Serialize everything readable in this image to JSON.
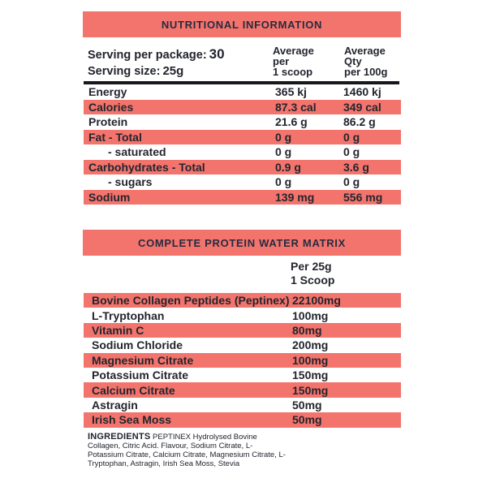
{
  "colors": {
    "accent": "#f3746c",
    "header_text": "#262b40",
    "row_text": "#23252e",
    "divider": "#17171c",
    "background": "#ffffff"
  },
  "nutrition": {
    "title": "NUTRITIONAL INFORMATION",
    "serving_package_label": "Serving per package:",
    "serving_package_value": "30",
    "serving_size_label": "Serving size:",
    "serving_size_value": "25g",
    "col1": {
      "l1": "Average",
      "l2": "per",
      "l3": "1 scoop"
    },
    "col2": {
      "l1": "Average",
      "l2": "Qty",
      "l3": "per 100g"
    },
    "rows": [
      {
        "label": "Energy",
        "scoop": "365 kj",
        "per100": "1460 kj"
      },
      {
        "label": "Calories",
        "scoop": "87.3 cal",
        "per100": "349 cal"
      },
      {
        "label": "Protein",
        "scoop": "21.6 g",
        "per100": "86.2 g"
      },
      {
        "label": "Fat - Total",
        "scoop": "0 g",
        "per100": "0 g"
      },
      {
        "label": "- saturated",
        "scoop": "0 g",
        "per100": "0 g"
      },
      {
        "label": "Carbohydrates - Total",
        "scoop": "0.9 g",
        "per100": "3.6 g"
      },
      {
        "label": "- sugars",
        "scoop": "0 g",
        "per100": "0 g"
      },
      {
        "label": "Sodium",
        "scoop": "139 mg",
        "per100": "556 mg"
      }
    ]
  },
  "matrix": {
    "title": "COMPLETE PROTEIN WATER MATRIX",
    "col_header_line1": "Per 25g",
    "col_header_line2": "1 Scoop",
    "rows": [
      {
        "label": "Bovine Collagen Peptides (Peptinex)",
        "value": "22100mg"
      },
      {
        "label": "L-Tryptophan",
        "value": "100mg"
      },
      {
        "label": "Vitamin C",
        "value": "80mg"
      },
      {
        "label": "Sodium Chloride",
        "value": "200mg"
      },
      {
        "label": "Magnesium Citrate",
        "value": "100mg"
      },
      {
        "label": "Potassium Citrate",
        "value": "150mg"
      },
      {
        "label": "Calcium Citrate",
        "value": "150mg"
      },
      {
        "label": "Astragin",
        "value": "50mg"
      },
      {
        "label": "Irish Sea Moss",
        "value": "50mg"
      }
    ]
  },
  "ingredients": {
    "heading": "INGREDIENTS",
    "text": "PEPTINEX Hydrolysed Bovine Collagen, Citric Acid. Flavour, Sodium Citrate, L- Potassium Citrate, Calcium Citrate, Magnesium Citrate, L-Tryptophan, Astragin, Irish Sea Moss, Stevia"
  }
}
